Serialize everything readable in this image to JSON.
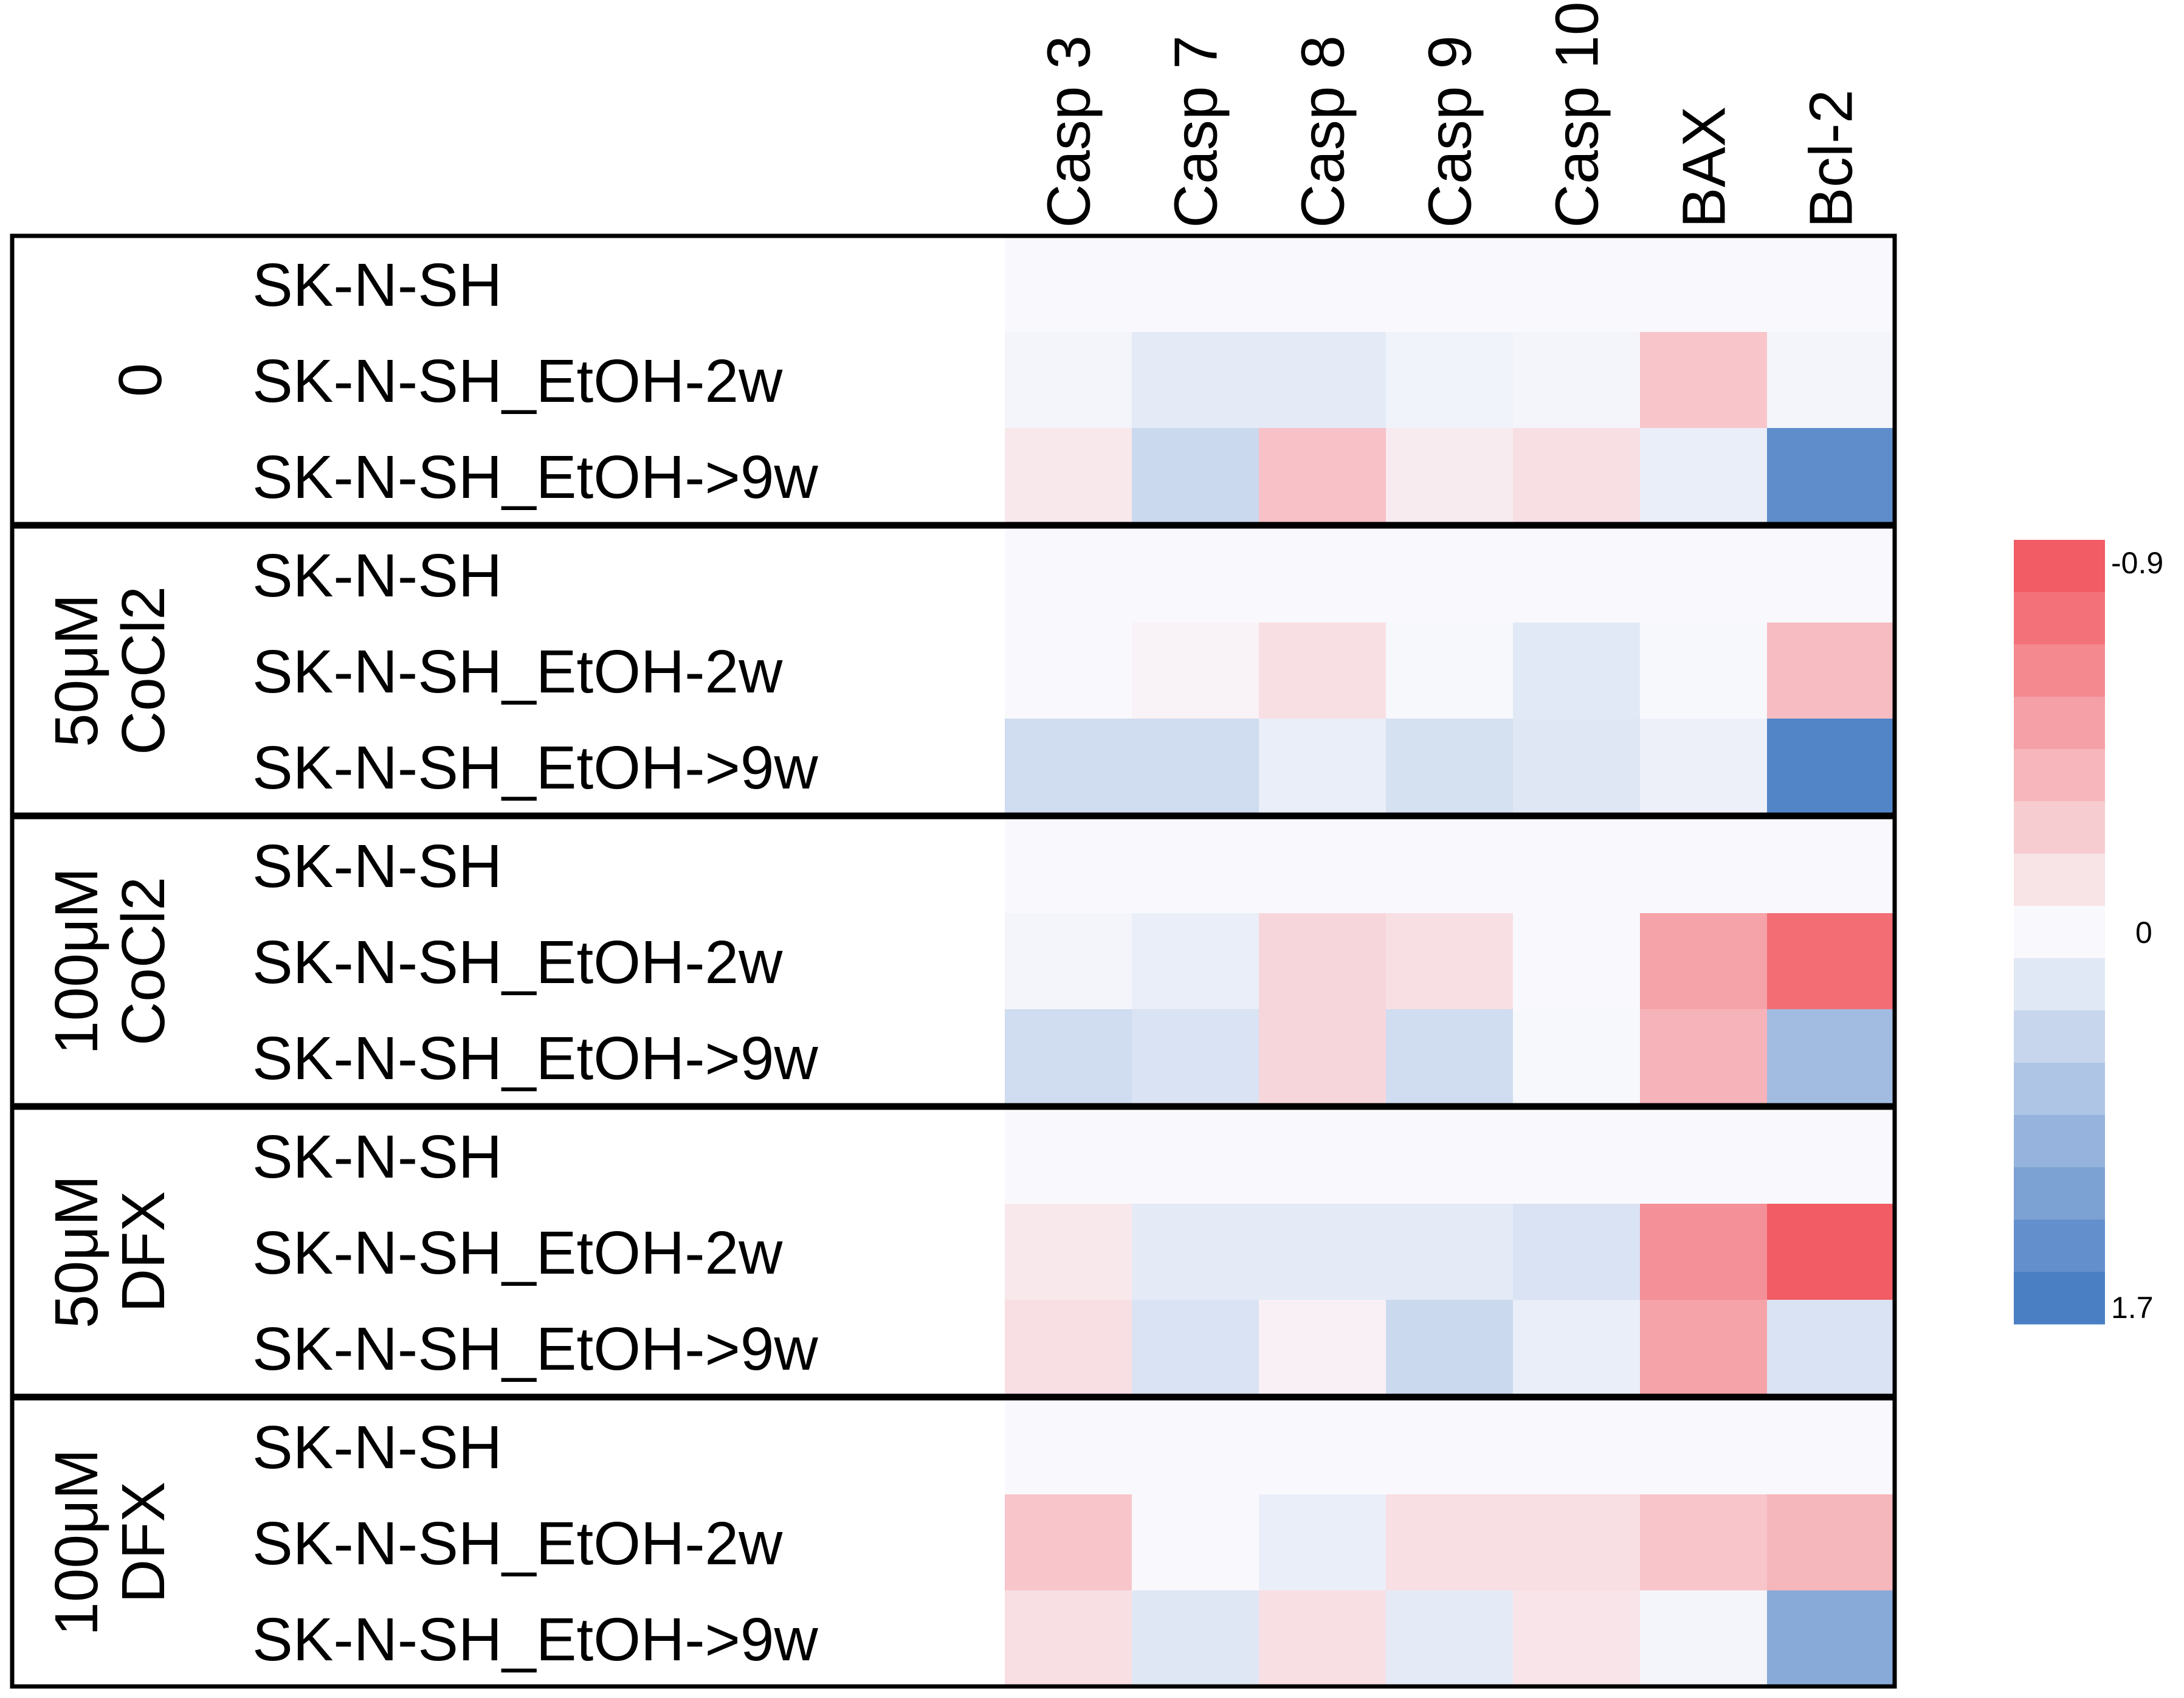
{
  "chart_data": {
    "type": "heatmap",
    "columns": [
      "Casp 3",
      "Casp 7",
      "Casp 8",
      "Casp 9",
      "Casp 10",
      "BAX",
      "Bcl-2"
    ],
    "groups": [
      {
        "label_lines": [
          "0"
        ],
        "rows": [
          {
            "label": "SK-N-SH",
            "values": [
              0,
              0,
              0,
              0,
              0,
              0,
              0
            ]
          },
          {
            "label": "SK-N-SH_EtOH-2w",
            "values": [
              0.05,
              0.2,
              0.2,
              0.08,
              0.05,
              -0.3,
              0.05
            ]
          },
          {
            "label": "SK-N-SH_EtOH->9w",
            "values": [
              -0.1,
              0.45,
              -0.32,
              -0.08,
              -0.15,
              0.15,
              1.5
            ]
          }
        ]
      },
      {
        "label_lines": [
          "50μM",
          "CoCl2"
        ],
        "rows": [
          {
            "label": "SK-N-SH",
            "values": [
              0,
              0,
              0,
              0,
              0,
              0,
              0
            ]
          },
          {
            "label": "SK-N-SH_EtOH-2w",
            "values": [
              0,
              -0.04,
              -0.15,
              0.02,
              0.22,
              0.02,
              -0.35
            ]
          },
          {
            "label": "SK-N-SH_EtOH->9w",
            "values": [
              0.4,
              0.4,
              0.15,
              0.35,
              0.25,
              0.12,
              1.62
            ]
          }
        ]
      },
      {
        "label_lines": [
          "100μM",
          "CoCl2"
        ],
        "rows": [
          {
            "label": "SK-N-SH",
            "values": [
              0,
              0,
              0,
              0,
              0,
              0,
              0
            ]
          },
          {
            "label": "SK-N-SH_EtOH-2w",
            "values": [
              0.05,
              0.15,
              -0.2,
              -0.15,
              0,
              -0.5,
              -0.8
            ]
          },
          {
            "label": "SK-N-SH_EtOH->9w",
            "values": [
              0.4,
              0.3,
              -0.2,
              0.4,
              0.02,
              -0.4,
              0.85
            ]
          }
        ]
      },
      {
        "label_lines": [
          "50μM",
          "DFX"
        ],
        "rows": [
          {
            "label": "SK-N-SH",
            "values": [
              0,
              0,
              0,
              0,
              0,
              0,
              0
            ]
          },
          {
            "label": "SK-N-SH_EtOH-2w",
            "values": [
              -0.1,
              0.2,
              0.2,
              0.2,
              0.3,
              -0.6,
              -0.9
            ]
          },
          {
            "label": "SK-N-SH_EtOH->9w",
            "values": [
              -0.15,
              0.3,
              -0.05,
              0.45,
              0.15,
              -0.5,
              0.3
            ]
          }
        ]
      },
      {
        "label_lines": [
          "100μM",
          "DFX"
        ],
        "rows": [
          {
            "label": "SK-N-SH",
            "values": [
              0,
              0,
              0,
              0,
              0,
              0,
              0
            ]
          },
          {
            "label": "SK-N-SH_EtOH-2w",
            "values": [
              -0.3,
              0,
              0.15,
              -0.15,
              -0.15,
              -0.3,
              -0.38
            ]
          },
          {
            "label": "SK-N-SH_EtOH->9w",
            "values": [
              -0.15,
              0.25,
              -0.15,
              0.2,
              -0.12,
              0.05,
              1.1
            ]
          }
        ]
      }
    ],
    "color_scale": {
      "min": -0.9,
      "max": 1.7,
      "mid": 0,
      "min_label": "-0.9",
      "mid_label": "0",
      "max_label": "1.7",
      "low_color": "#f25c64",
      "mid_color": "#f9f9fd",
      "high_color": "#4a7fc4",
      "legend_steps": 15
    }
  }
}
